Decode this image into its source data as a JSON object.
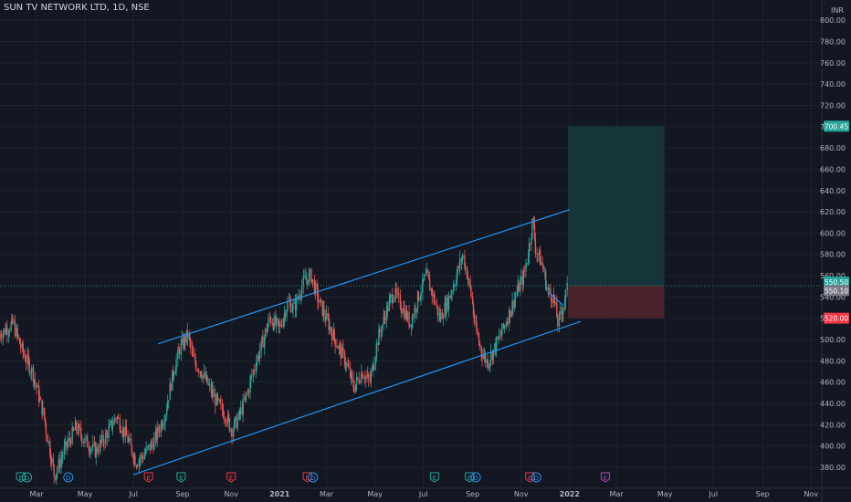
{
  "header": {
    "title": "SUN TV NETWORK LTD, 1D, NSE"
  },
  "colors": {
    "background": "#131722",
    "grid": "#1e222d",
    "axis_text": "#b2b5be",
    "up_candle": "#26a69a",
    "down_candle": "#ef5350",
    "channel_line": "#2196f3",
    "target_zone": "#16353a",
    "stop_zone": "#4a2229",
    "target_label": "#26a69a",
    "stop_label": "#f23645",
    "last_price_label": "#26a69a",
    "prev_close_label": "#787b86"
  },
  "chart_data": {
    "type": "candlestick",
    "title": "SUN TV NETWORK LTD, 1D, NSE",
    "y_unit": "INR",
    "ylim": [
      370,
      810
    ],
    "y_ticks": [
      "800.00",
      "780.00",
      "760.00",
      "740.00",
      "720.00",
      "700.00",
      "680.00",
      "660.00",
      "640.00",
      "620.00",
      "600.00",
      "580.00",
      "560.00",
      "540.00",
      "520.00",
      "500.00",
      "480.00",
      "460.00",
      "440.00",
      "420.00",
      "400.00",
      "380.00"
    ],
    "x_ticks": [
      {
        "label": "Mar",
        "date": "2020-03-01"
      },
      {
        "label": "May",
        "date": "2020-05-01"
      },
      {
        "label": "Jul",
        "date": "2020-07-01"
      },
      {
        "label": "Sep",
        "date": "2020-09-01"
      },
      {
        "label": "Nov",
        "date": "2020-11-01"
      },
      {
        "label": "2021",
        "date": "2021-01-01"
      },
      {
        "label": "Mar",
        "date": "2021-03-01"
      },
      {
        "label": "May",
        "date": "2021-05-01"
      },
      {
        "label": "Jul",
        "date": "2021-07-01"
      },
      {
        "label": "Sep",
        "date": "2021-09-01"
      },
      {
        "label": "Nov",
        "date": "2021-11-01"
      },
      {
        "label": "2022",
        "date": "2022-01-01"
      },
      {
        "label": "Mar",
        "date": "2022-03-01"
      },
      {
        "label": "May",
        "date": "2022-05-01"
      },
      {
        "label": "Jul",
        "date": "2022-07-01"
      },
      {
        "label": "Sep",
        "date": "2022-09-01"
      },
      {
        "label": "Nov",
        "date": "2022-11-01"
      },
      {
        "label": "20",
        "date": "2023-01-01"
      }
    ],
    "price_path": [
      [
        "2020-01-15",
        505
      ],
      [
        "2020-02-01",
        515
      ],
      [
        "2020-02-12",
        490
      ],
      [
        "2020-02-25",
        470
      ],
      [
        "2020-03-10",
        430
      ],
      [
        "2020-03-24",
        372
      ],
      [
        "2020-04-05",
        395
      ],
      [
        "2020-04-20",
        418
      ],
      [
        "2020-05-01",
        405
      ],
      [
        "2020-05-15",
        395
      ],
      [
        "2020-05-28",
        410
      ],
      [
        "2020-06-10",
        428
      ],
      [
        "2020-06-22",
        410
      ],
      [
        "2020-07-05",
        385
      ],
      [
        "2020-07-15",
        392
      ],
      [
        "2020-07-28",
        405
      ],
      [
        "2020-08-10",
        430
      ],
      [
        "2020-08-20",
        468
      ],
      [
        "2020-08-28",
        490
      ],
      [
        "2020-09-08",
        505
      ],
      [
        "2020-09-15",
        480
      ],
      [
        "2020-09-25",
        470
      ],
      [
        "2020-10-05",
        455
      ],
      [
        "2020-10-15",
        440
      ],
      [
        "2020-10-25",
        430
      ],
      [
        "2020-11-02",
        415
      ],
      [
        "2020-11-10",
        425
      ],
      [
        "2020-11-20",
        445
      ],
      [
        "2020-12-01",
        475
      ],
      [
        "2020-12-10",
        495
      ],
      [
        "2020-12-20",
        520
      ],
      [
        "2021-01-01",
        510
      ],
      [
        "2021-01-12",
        535
      ],
      [
        "2021-01-20",
        530
      ],
      [
        "2021-02-01",
        555
      ],
      [
        "2021-02-10",
        560
      ],
      [
        "2021-02-20",
        535
      ],
      [
        "2021-03-01",
        520
      ],
      [
        "2021-03-12",
        500
      ],
      [
        "2021-03-25",
        480
      ],
      [
        "2021-04-05",
        455
      ],
      [
        "2021-04-15",
        470
      ],
      [
        "2021-04-25",
        460
      ],
      [
        "2021-05-05",
        500
      ],
      [
        "2021-05-15",
        525
      ],
      [
        "2021-05-25",
        545
      ],
      [
        "2021-06-05",
        530
      ],
      [
        "2021-06-15",
        515
      ],
      [
        "2021-06-25",
        540
      ],
      [
        "2021-07-05",
        560
      ],
      [
        "2021-07-12",
        545
      ],
      [
        "2021-07-22",
        520
      ],
      [
        "2021-08-01",
        535
      ],
      [
        "2021-08-12",
        560
      ],
      [
        "2021-08-20",
        580
      ],
      [
        "2021-08-30",
        545
      ],
      [
        "2021-09-05",
        510
      ],
      [
        "2021-09-12",
        490
      ],
      [
        "2021-09-20",
        478
      ],
      [
        "2021-10-01",
        495
      ],
      [
        "2021-10-10",
        510
      ],
      [
        "2021-10-20",
        530
      ],
      [
        "2021-10-30",
        550
      ],
      [
        "2021-11-05",
        560
      ],
      [
        "2021-11-12",
        590
      ],
      [
        "2021-11-16",
        612
      ],
      [
        "2021-11-20",
        585
      ],
      [
        "2021-11-28",
        570
      ],
      [
        "2021-12-05",
        545
      ],
      [
        "2021-12-12",
        540
      ],
      [
        "2021-12-18",
        515
      ],
      [
        "2021-12-24",
        530
      ],
      [
        "2021-12-30",
        550.5
      ]
    ],
    "trend_channel": {
      "upper": [
        [
          "2020-08-01",
          496
        ],
        [
          "2022-01-01",
          622
        ]
      ],
      "lower": [
        [
          "2020-07-01",
          373
        ],
        [
          "2022-01-15",
          517
        ]
      ]
    },
    "short_trendline": [
      [
        "2021-12-05",
        545
      ],
      [
        "2021-12-24",
        532
      ]
    ],
    "position": {
      "type": "long",
      "start_date": "2021-12-30",
      "end_date": "2022-04-30",
      "entry": 550.5,
      "target": 700.45,
      "stop": 520.0
    },
    "price_labels": {
      "target": "700.45",
      "last": "550.50",
      "prev": "550.10",
      "stop": "520.00"
    },
    "event_markers": [
      {
        "date": "2020-02-10",
        "kind": "E",
        "color": "green"
      },
      {
        "date": "2020-02-18",
        "kind": "D",
        "color": "green"
      },
      {
        "date": "2020-04-10",
        "kind": "D",
        "color": "blue"
      },
      {
        "date": "2020-07-20",
        "kind": "E",
        "color": "red"
      },
      {
        "date": "2020-08-30",
        "kind": "E",
        "color": "green"
      },
      {
        "date": "2020-11-01",
        "kind": "E",
        "color": "red"
      },
      {
        "date": "2021-02-05",
        "kind": "E",
        "color": "red"
      },
      {
        "date": "2021-02-12",
        "kind": "D",
        "color": "blue"
      },
      {
        "date": "2021-07-15",
        "kind": "E",
        "color": "green"
      },
      {
        "date": "2021-08-28",
        "kind": "E",
        "color": "green"
      },
      {
        "date": "2021-09-05",
        "kind": "D",
        "color": "blue"
      },
      {
        "date": "2021-11-12",
        "kind": "E",
        "color": "red"
      },
      {
        "date": "2021-11-20",
        "kind": "D",
        "color": "blue"
      },
      {
        "date": "2022-02-15",
        "kind": "E",
        "color": "purple"
      }
    ]
  }
}
